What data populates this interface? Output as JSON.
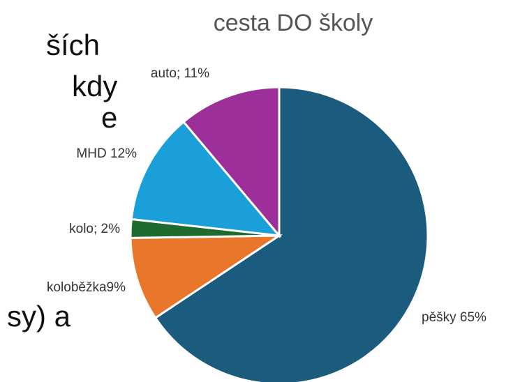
{
  "background_text": {
    "line1": "ších",
    "line2": "kdy",
    "line3": "e",
    "line4": "sy) a"
  },
  "chart_data": {
    "type": "pie",
    "title": "cesta DO školy",
    "slices": [
      {
        "name": "pěšky",
        "value": 65,
        "label": "pěšky 65%",
        "color": "#1b5c7e"
      },
      {
        "name": "koloběžka",
        "value": 9,
        "label": "koloběžka9%",
        "color": "#e8762b"
      },
      {
        "name": "kolo",
        "value": 2,
        "label": "kolo; 2%",
        "color": "#1f6b2d"
      },
      {
        "name": "MHD",
        "value": 12,
        "label": "MHD 12%",
        "color": "#1a9fd8"
      },
      {
        "name": "auto",
        "value": 11,
        "label": "auto; 11%",
        "color": "#9c2f9a"
      }
    ],
    "start": "top",
    "direction": "clockwise",
    "legend": "none"
  }
}
